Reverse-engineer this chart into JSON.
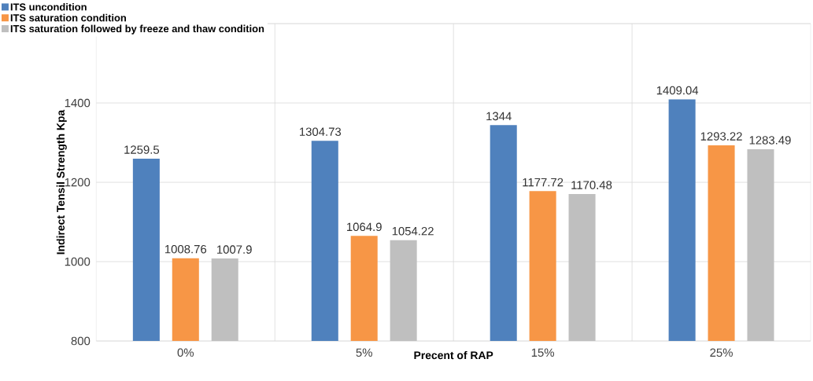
{
  "chart_data": {
    "type": "bar",
    "xlabel": "Precent of RAP",
    "ylabel": "Indirect Tensil Strength Kpa",
    "categories": [
      "0%",
      "5%",
      "15%",
      "25%"
    ],
    "series": [
      {
        "name": "ITS uncondition",
        "color": "#4f81bd",
        "values": [
          1259.5,
          1304.73,
          1344,
          1409.04
        ]
      },
      {
        "name": "ITS saturation condition",
        "color": "#f79646",
        "values": [
          1008.76,
          1064.9,
          1177.72,
          1293.22
        ]
      },
      {
        "name": "ITS saturation followed by freeze and thaw condition",
        "color": "#bfbfbf",
        "values": [
          1007.9,
          1054.22,
          1170.48,
          1283.49
        ]
      }
    ],
    "ylim": [
      800,
      1600
    ],
    "yticks": [
      800,
      1000,
      1200,
      1400,
      {
        "value": 1600,
        "label": null
      }
    ],
    "grid": true,
    "legend": "top left",
    "data_labels": true
  }
}
